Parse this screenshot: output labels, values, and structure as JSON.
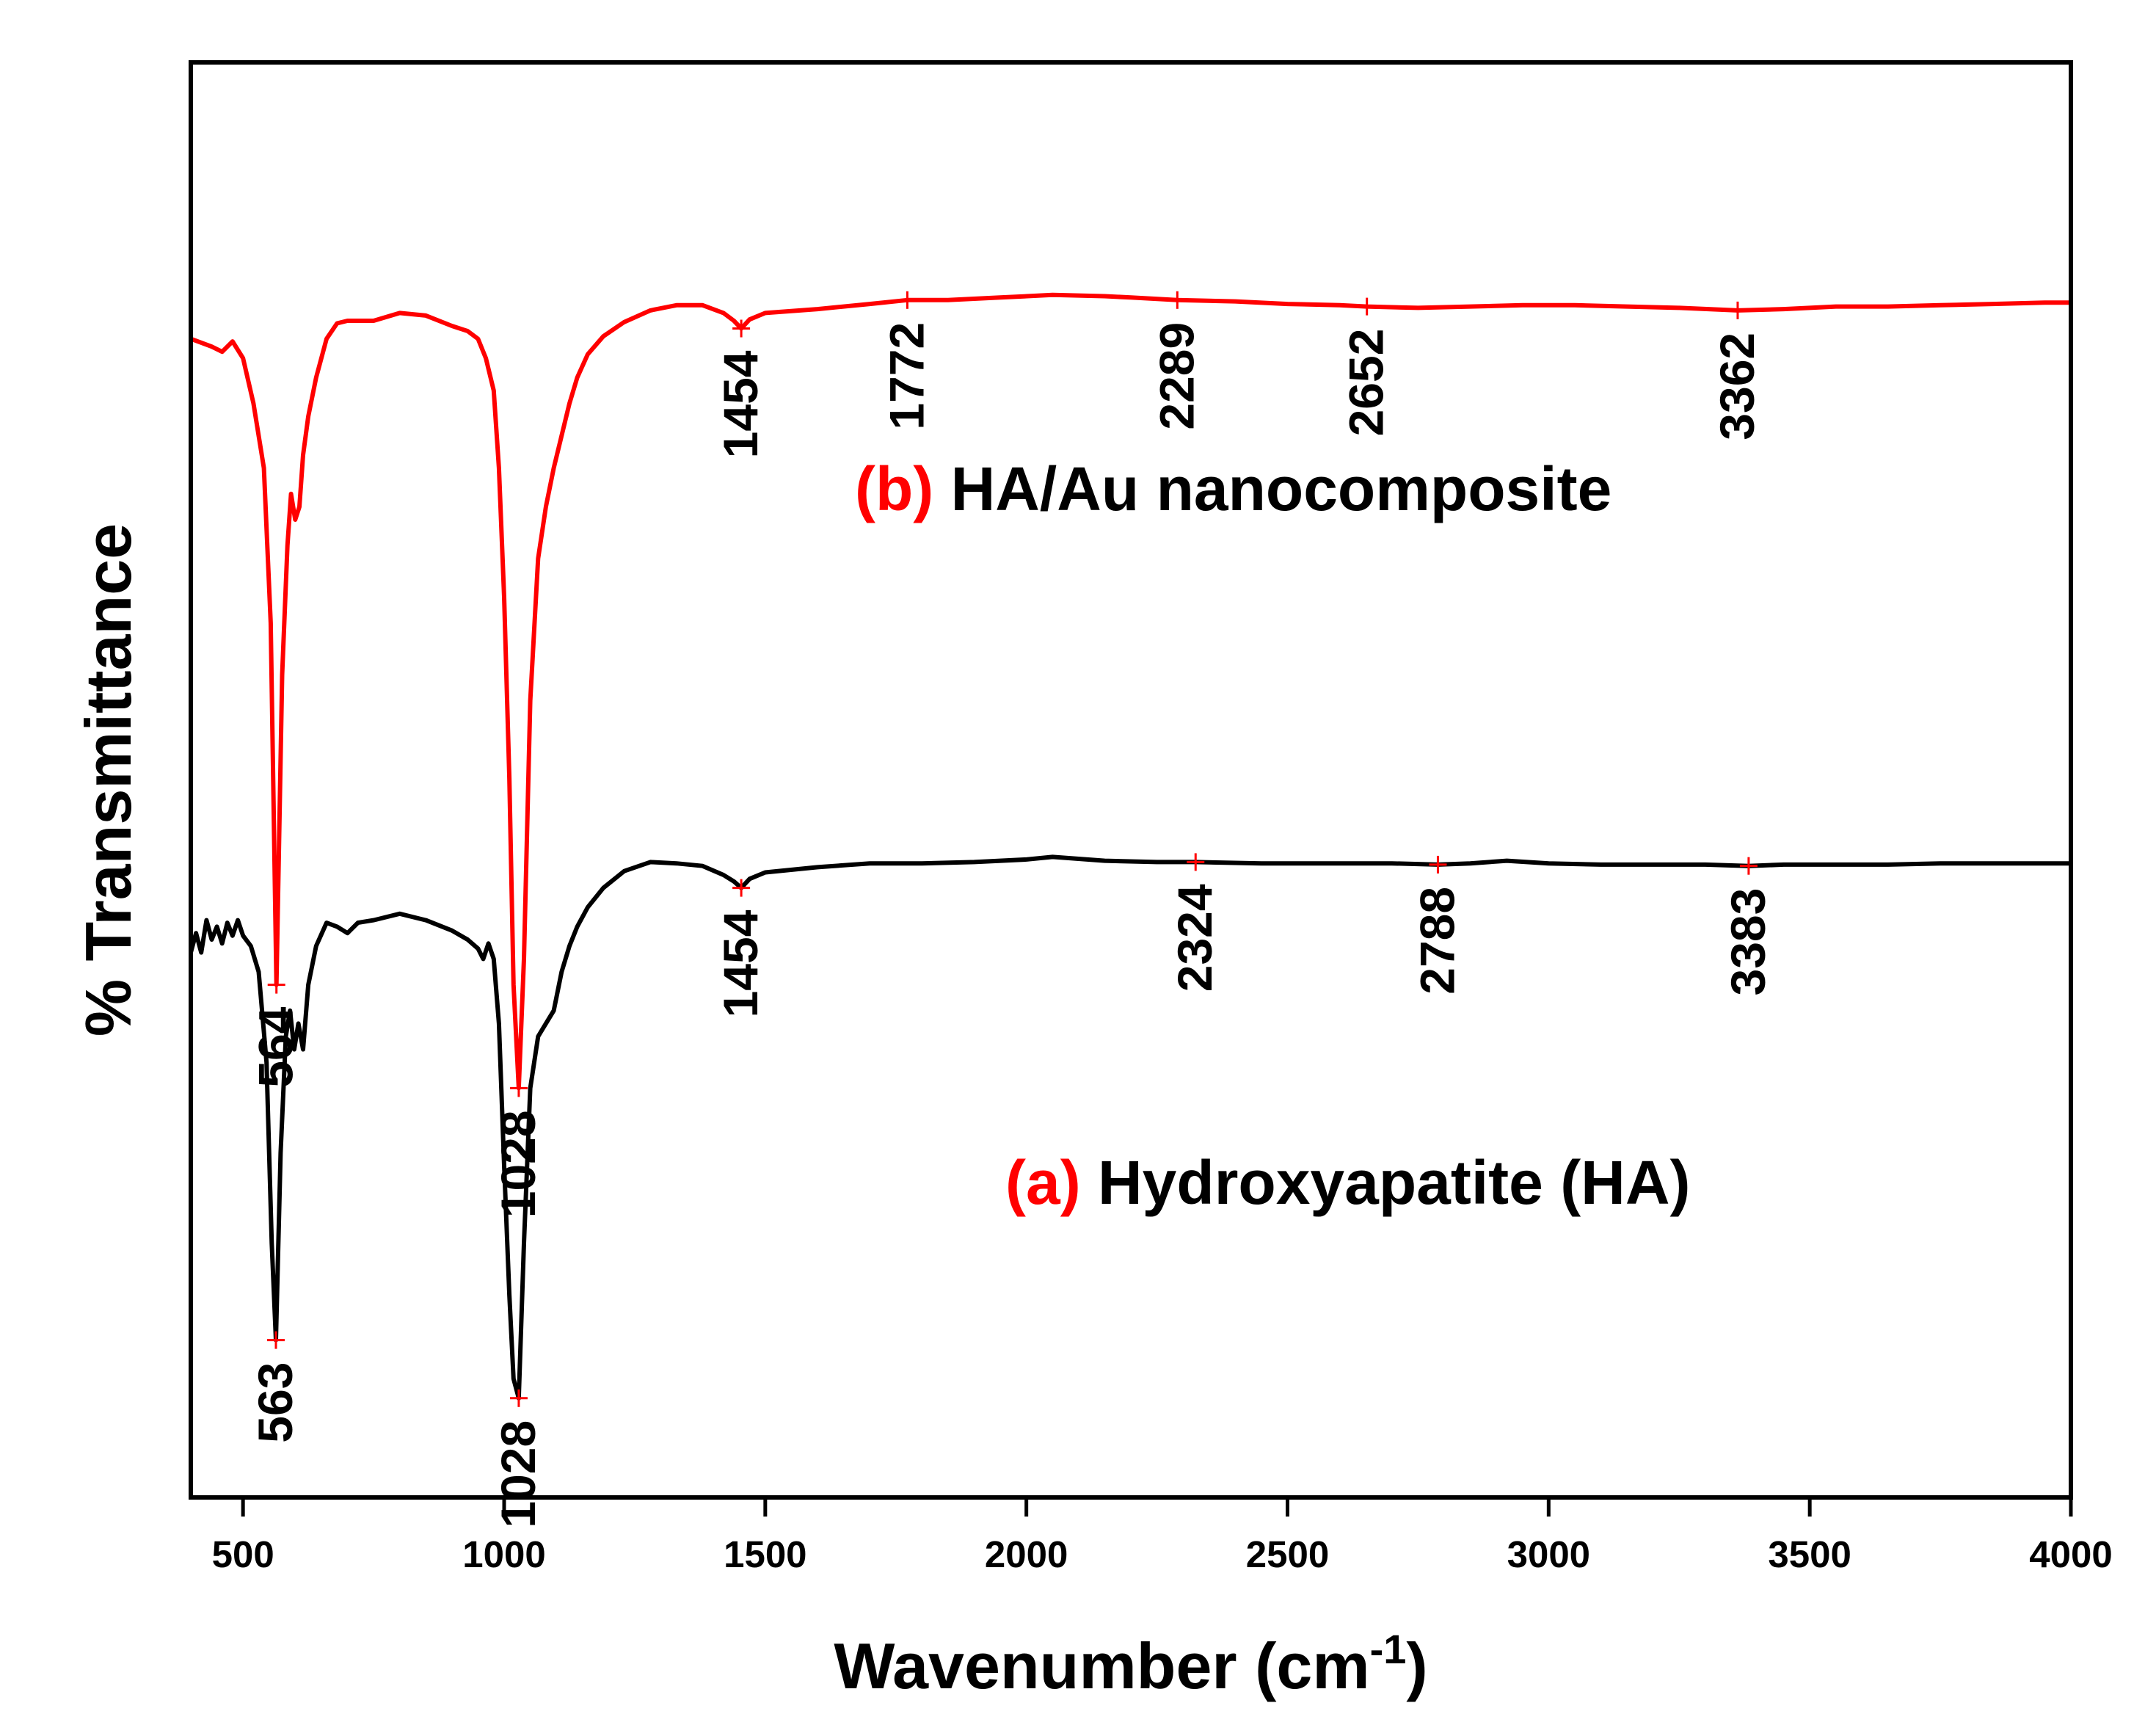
{
  "chart_data": {
    "type": "line",
    "title": "",
    "xlabel": "Wavenumber (cm",
    "xlabel_superscript": "-1",
    "xlabel_suffix": ")",
    "ylabel": "% Transmittance",
    "xlim": [
      400,
      4000
    ],
    "x_ticks": [
      500,
      1000,
      1500,
      2000,
      2500,
      3000,
      3500,
      4000
    ],
    "x_tick_labels": [
      "500",
      "1000",
      "1500",
      "2000",
      "2500",
      "3000",
      "3500",
      "4000"
    ],
    "series": [
      {
        "id": "b",
        "marker_text": "(b)",
        "name": "HA/Au nanocomposite",
        "color": "#ff0000",
        "baseline": 0.13,
        "x": [
          400,
          440,
          460,
          480,
          500,
          520,
          540,
          553,
          564,
          575,
          585,
          592,
          600,
          608,
          615,
          625,
          640,
          660,
          680,
          700,
          750,
          800,
          850,
          900,
          930,
          950,
          965,
          980,
          990,
          1000,
          1010,
          1018,
          1028,
          1038,
          1050,
          1065,
          1080,
          1095,
          1110,
          1125,
          1140,
          1160,
          1190,
          1230,
          1280,
          1330,
          1380,
          1420,
          1440,
          1454,
          1470,
          1500,
          1600,
          1700,
          1772,
          1850,
          1950,
          2050,
          2150,
          2200,
          2289,
          2400,
          2500,
          2600,
          2652,
          2750,
          2850,
          2950,
          3050,
          3150,
          3250,
          3362,
          3450,
          3550,
          3650,
          3750,
          3850,
          3950,
          4000
        ],
        "y": [
          0.16,
          0.166,
          0.17,
          0.162,
          0.175,
          0.21,
          0.26,
          0.38,
          0.66,
          0.42,
          0.32,
          0.28,
          0.3,
          0.29,
          0.25,
          0.22,
          0.19,
          0.16,
          0.148,
          0.146,
          0.146,
          0.14,
          0.142,
          0.15,
          0.154,
          0.16,
          0.175,
          0.2,
          0.26,
          0.36,
          0.5,
          0.66,
          0.74,
          0.64,
          0.44,
          0.33,
          0.29,
          0.26,
          0.235,
          0.21,
          0.19,
          0.172,
          0.158,
          0.147,
          0.138,
          0.134,
          0.134,
          0.14,
          0.146,
          0.152,
          0.145,
          0.14,
          0.137,
          0.133,
          0.13,
          0.13,
          0.128,
          0.126,
          0.127,
          0.128,
          0.13,
          0.131,
          0.133,
          0.134,
          0.135,
          0.136,
          0.135,
          0.134,
          0.134,
          0.135,
          0.136,
          0.138,
          0.137,
          0.135,
          0.135,
          0.134,
          0.133,
          0.132,
          0.132
        ],
        "peaks": [
          {
            "x": 564,
            "label": "564",
            "y": 0.66,
            "side": "below"
          },
          {
            "x": 1028,
            "label": "1028",
            "y": 0.74,
            "side": "below"
          },
          {
            "x": 1454,
            "label": "1454",
            "y": 0.152,
            "side": "below"
          },
          {
            "x": 1772,
            "label": "1772",
            "y": 0.13,
            "side": "below"
          },
          {
            "x": 2289,
            "label": "2289",
            "y": 0.13,
            "side": "below"
          },
          {
            "x": 2652,
            "label": "2652",
            "y": 0.135,
            "side": "below"
          },
          {
            "x": 3362,
            "label": "3362",
            "y": 0.138,
            "side": "below"
          }
        ]
      },
      {
        "id": "a",
        "marker_text": "(a)",
        "name": "Hydroxyapatite (HA)",
        "color": "#000000",
        "x": [
          400,
          410,
          420,
          430,
          440,
          450,
          460,
          470,
          480,
          490,
          500,
          515,
          530,
          545,
          555,
          563,
          572,
          582,
          590,
          598,
          606,
          615,
          625,
          640,
          660,
          680,
          700,
          720,
          750,
          800,
          850,
          900,
          930,
          950,
          960,
          970,
          980,
          990,
          1000,
          1010,
          1018,
          1028,
          1038,
          1050,
          1065,
          1080,
          1095,
          1110,
          1125,
          1140,
          1160,
          1190,
          1230,
          1280,
          1330,
          1380,
          1420,
          1440,
          1454,
          1470,
          1500,
          1600,
          1700,
          1800,
          1900,
          2000,
          2050,
          2150,
          2250,
          2324,
          2450,
          2550,
          2650,
          2700,
          2788,
          2850,
          2920,
          3000,
          3100,
          3200,
          3300,
          3383,
          3450,
          3550,
          3650,
          3750,
          3850,
          3950,
          4000
        ],
        "y": [
          0.635,
          0.62,
          0.635,
          0.61,
          0.625,
          0.615,
          0.628,
          0.612,
          0.622,
          0.61,
          0.622,
          0.63,
          0.65,
          0.72,
          0.86,
          0.935,
          0.79,
          0.7,
          0.68,
          0.71,
          0.69,
          0.71,
          0.66,
          0.63,
          0.612,
          0.615,
          0.62,
          0.612,
          0.61,
          0.605,
          0.61,
          0.618,
          0.625,
          0.632,
          0.64,
          0.628,
          0.64,
          0.69,
          0.8,
          0.9,
          0.965,
          0.98,
          0.86,
          0.74,
          0.7,
          0.69,
          0.68,
          0.65,
          0.63,
          0.615,
          0.6,
          0.585,
          0.572,
          0.565,
          0.566,
          0.568,
          0.575,
          0.58,
          0.585,
          0.578,
          0.573,
          0.569,
          0.566,
          0.566,
          0.565,
          0.563,
          0.561,
          0.564,
          0.565,
          0.565,
          0.566,
          0.566,
          0.566,
          0.566,
          0.567,
          0.566,
          0.564,
          0.566,
          0.567,
          0.567,
          0.567,
          0.568,
          0.567,
          0.567,
          0.567,
          0.566,
          0.566,
          0.566,
          0.566
        ],
        "peaks": [
          {
            "x": 563,
            "label": "563",
            "y": 0.935,
            "side": "below"
          },
          {
            "x": 1028,
            "label": "1028",
            "y": 0.98,
            "side": "below"
          },
          {
            "x": 1454,
            "label": "1454",
            "y": 0.585,
            "side": "below"
          },
          {
            "x": 2324,
            "label": "2324",
            "y": 0.565,
            "side": "below"
          },
          {
            "x": 2788,
            "label": "2788",
            "y": 0.567,
            "side": "below"
          },
          {
            "x": 3383,
            "label": "3383",
            "y": 0.568,
            "side": "below"
          }
        ]
      }
    ],
    "peak_marker_color": "#ff0000",
    "legend_marker_color": "#ff0000"
  }
}
